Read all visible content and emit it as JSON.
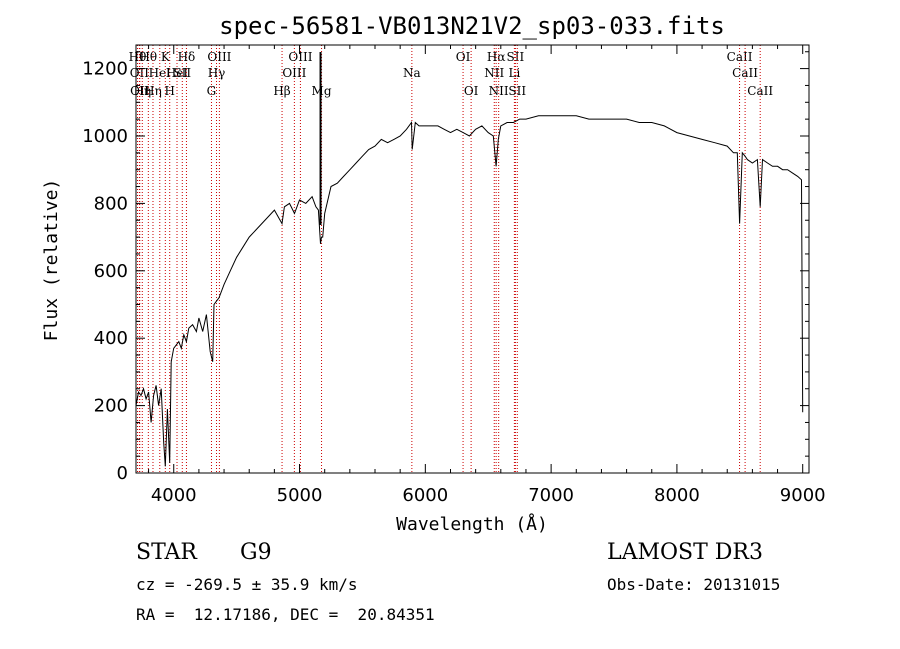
{
  "chart_data": {
    "type": "line",
    "title": "spec-56581-VB013N21V2_sp03-033.fits",
    "xlabel": "Wavelength (Å)",
    "ylabel": "Flux (relative)",
    "xlim": [
      3700,
      9050
    ],
    "ylim": [
      0,
      1270
    ],
    "xticks": [
      4000,
      5000,
      6000,
      7000,
      8000,
      9000
    ],
    "yticks": [
      0,
      200,
      400,
      600,
      800,
      1000,
      1200
    ],
    "spectrum": {
      "x": [
        3700,
        3720,
        3740,
        3760,
        3780,
        3800,
        3820,
        3840,
        3860,
        3880,
        3900,
        3920,
        3933,
        3950,
        3968,
        3980,
        4000,
        4020,
        4040,
        4060,
        4080,
        4101,
        4120,
        4150,
        4180,
        4200,
        4230,
        4260,
        4290,
        4310,
        4320,
        4340,
        4360,
        4400,
        4450,
        4500,
        4550,
        4600,
        4650,
        4700,
        4750,
        4800,
        4861,
        4880,
        4920,
        4960,
        5000,
        5050,
        5100,
        5130,
        5150,
        5167,
        5175,
        5184,
        5200,
        5250,
        5300,
        5350,
        5400,
        5450,
        5500,
        5550,
        5600,
        5650,
        5700,
        5750,
        5800,
        5850,
        5890,
        5896,
        5920,
        5950,
        6000,
        6050,
        6100,
        6150,
        6200,
        6250,
        6300,
        6350,
        6400,
        6450,
        6500,
        6540,
        6563,
        6580,
        6600,
        6650,
        6700,
        6750,
        6800,
        6900,
        7000,
        7100,
        7200,
        7300,
        7400,
        7500,
        7600,
        7700,
        7800,
        7900,
        8000,
        8100,
        8200,
        8300,
        8400,
        8450,
        8480,
        8498,
        8520,
        8542,
        8560,
        8600,
        8640,
        8662,
        8680,
        8720,
        8760,
        8800,
        8840,
        8880,
        8920,
        8960,
        8990,
        9000
      ],
      "y": [
        200,
        240,
        230,
        250,
        220,
        240,
        150,
        230,
        260,
        200,
        250,
        90,
        20,
        190,
        30,
        330,
        370,
        380,
        390,
        370,
        410,
        390,
        430,
        440,
        420,
        460,
        420,
        470,
        360,
        330,
        500,
        510,
        520,
        560,
        600,
        640,
        670,
        700,
        720,
        740,
        760,
        780,
        740,
        790,
        800,
        770,
        810,
        800,
        820,
        790,
        780,
        680,
        700,
        700,
        770,
        850,
        860,
        880,
        900,
        920,
        940,
        960,
        970,
        990,
        980,
        990,
        1000,
        1020,
        1040,
        960,
        1040,
        1030,
        1030,
        1030,
        1030,
        1020,
        1010,
        1020,
        1010,
        1000,
        1020,
        1030,
        1010,
        1000,
        910,
        990,
        1030,
        1040,
        1040,
        1050,
        1050,
        1060,
        1060,
        1060,
        1060,
        1050,
        1050,
        1050,
        1050,
        1040,
        1040,
        1030,
        1010,
        1000,
        990,
        980,
        970,
        950,
        950,
        740,
        950,
        940,
        930,
        920,
        930,
        790,
        930,
        920,
        910,
        910,
        900,
        900,
        890,
        880,
        870,
        180
      ]
    },
    "spectral_lines": [
      {
        "w": 3712,
        "label": "Hθ",
        "row": 0
      },
      {
        "w": 3727,
        "label": "OII",
        "row": 1
      },
      {
        "w": 3730,
        "label": "OII",
        "row": 2
      },
      {
        "w": 3750,
        "label": "Hη",
        "row": 2
      },
      {
        "w": 3798,
        "label": "Hθ",
        "row": 0
      },
      {
        "w": 3835,
        "label": "Hη",
        "row": 2
      },
      {
        "w": 3889,
        "label": "HeI",
        "row": 1
      },
      {
        "w": 3933,
        "label": "K",
        "row": 0
      },
      {
        "w": 3968,
        "label": "H",
        "row": 2
      },
      {
        "w": 4026,
        "label": "HeI",
        "row": 1
      },
      {
        "w": 4068,
        "label": "SII",
        "row": 1
      },
      {
        "w": 4101,
        "label": "Hδ",
        "row": 0
      },
      {
        "w": 4300,
        "label": "G",
        "row": 2
      },
      {
        "w": 4340,
        "label": "Hγ",
        "row": 1
      },
      {
        "w": 4363,
        "label": "OIII",
        "row": 0
      },
      {
        "w": 4861,
        "label": "Hβ",
        "row": 2
      },
      {
        "w": 4959,
        "label": "OIII",
        "row": 1
      },
      {
        "w": 5007,
        "label": "OIII",
        "row": 0
      },
      {
        "w": 5175,
        "label": "Mg",
        "row": 2
      },
      {
        "w": 5893,
        "label": "Na",
        "row": 1
      },
      {
        "w": 6300,
        "label": "OI",
        "row": 0
      },
      {
        "w": 6364,
        "label": "OI",
        "row": 2
      },
      {
        "w": 6548,
        "label": "NII",
        "row": 1
      },
      {
        "w": 6563,
        "label": "Hα",
        "row": 0
      },
      {
        "w": 6583,
        "label": "NII",
        "row": 2
      },
      {
        "w": 6708,
        "label": "Li",
        "row": 1
      },
      {
        "w": 6716,
        "label": "SII",
        "row": 0
      },
      {
        "w": 6731,
        "label": "SII",
        "row": 2
      },
      {
        "w": 8498,
        "label": "CaII",
        "row": 0
      },
      {
        "w": 8542,
        "label": "CaII",
        "row": 1
      },
      {
        "w": 8662,
        "label": "CaII",
        "row": 2
      }
    ],
    "vertical_marker": {
      "w": 5167
    }
  },
  "info": {
    "object_type": "STAR",
    "subclass": "G9",
    "survey": "LAMOST DR3",
    "redshift": "cz = -269.5 ± 35.9 km/s",
    "obs_date": "Obs-Date: 20131015",
    "coords": "RA =  12.17186, DEC =  20.84351"
  }
}
